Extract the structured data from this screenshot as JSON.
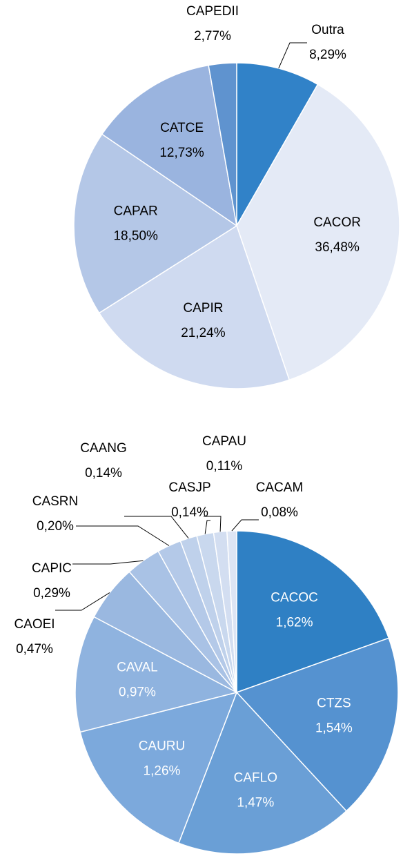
{
  "chart_data": [
    {
      "type": "pie",
      "categories": [
        "Outra",
        "CACOR",
        "CAPIR",
        "CAPAR",
        "CATCE",
        "CAPEDII"
      ],
      "values": [
        8.29,
        36.48,
        21.24,
        18.5,
        12.73,
        2.77
      ],
      "value_labels": [
        "8,29%",
        "36,48%",
        "21,24%",
        "18,50%",
        "12,73%",
        "2,77%"
      ],
      "colors": [
        "#3182c8",
        "#e4eaf6",
        "#cfdaf0",
        "#b4c7e7",
        "#9ab4df",
        "#5f93cf"
      ]
    },
    {
      "type": "pie",
      "categories": [
        "CACOC",
        "CTZS",
        "CAFLO",
        "CAURU",
        "CAVAL",
        "CAOEI",
        "CAPIC",
        "CASRN",
        "CAANG",
        "CASJP",
        "CAPAU",
        "CACAM"
      ],
      "values": [
        1.62,
        1.54,
        1.47,
        1.26,
        0.97,
        0.47,
        0.29,
        0.2,
        0.14,
        0.14,
        0.11,
        0.08
      ],
      "value_labels": [
        "1,62%",
        "1,54%",
        "1,47%",
        "1,26%",
        "0,97%",
        "0,47%",
        "0,29%",
        "0,20%",
        "0,14%",
        "0,14%",
        "0,11%",
        "0,08%"
      ],
      "colors": [
        "#2f80c4",
        "#5592d0",
        "#6a9fd6",
        "#7ca9dc",
        "#8fb3df",
        "#9ab8e0",
        "#a9c2e5",
        "#b4c9e8",
        "#bfd1eb",
        "#c9d8ee",
        "#d3def1",
        "#dde5f4"
      ]
    }
  ]
}
